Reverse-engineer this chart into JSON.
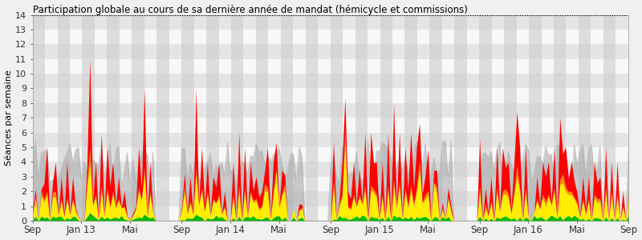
{
  "title": "Participation globale au cours de sa dernière année de mandat (hémicycle et commissions)",
  "ylabel": "Séances par semaine",
  "ylim": [
    0,
    14
  ],
  "yticks": [
    0,
    1,
    2,
    3,
    4,
    5,
    6,
    7,
    8,
    9,
    10,
    11,
    12,
    13,
    14
  ],
  "bg_color": "#f0f0f0",
  "stripe_dark": "#cccccc",
  "stripe_light": "#e8e8e8",
  "colors": {
    "green": "#00bb00",
    "yellow": "#ffee00",
    "orange": "#ff8800",
    "red": "#ff0000",
    "gray": "#aaaaaa"
  },
  "x_tick_labels": [
    "Sep",
    "Jan 13",
    "Mai",
    "Sep",
    "Jan 14",
    "Mai",
    "Sep",
    "Jan 15",
    "Mai",
    "Sep",
    "Jan 16",
    "Mai",
    "Sep"
  ],
  "x_tick_positions": [
    0,
    17,
    34,
    52,
    69,
    86,
    104,
    121,
    138,
    156,
    173,
    190,
    208
  ],
  "n_weeks": 209
}
